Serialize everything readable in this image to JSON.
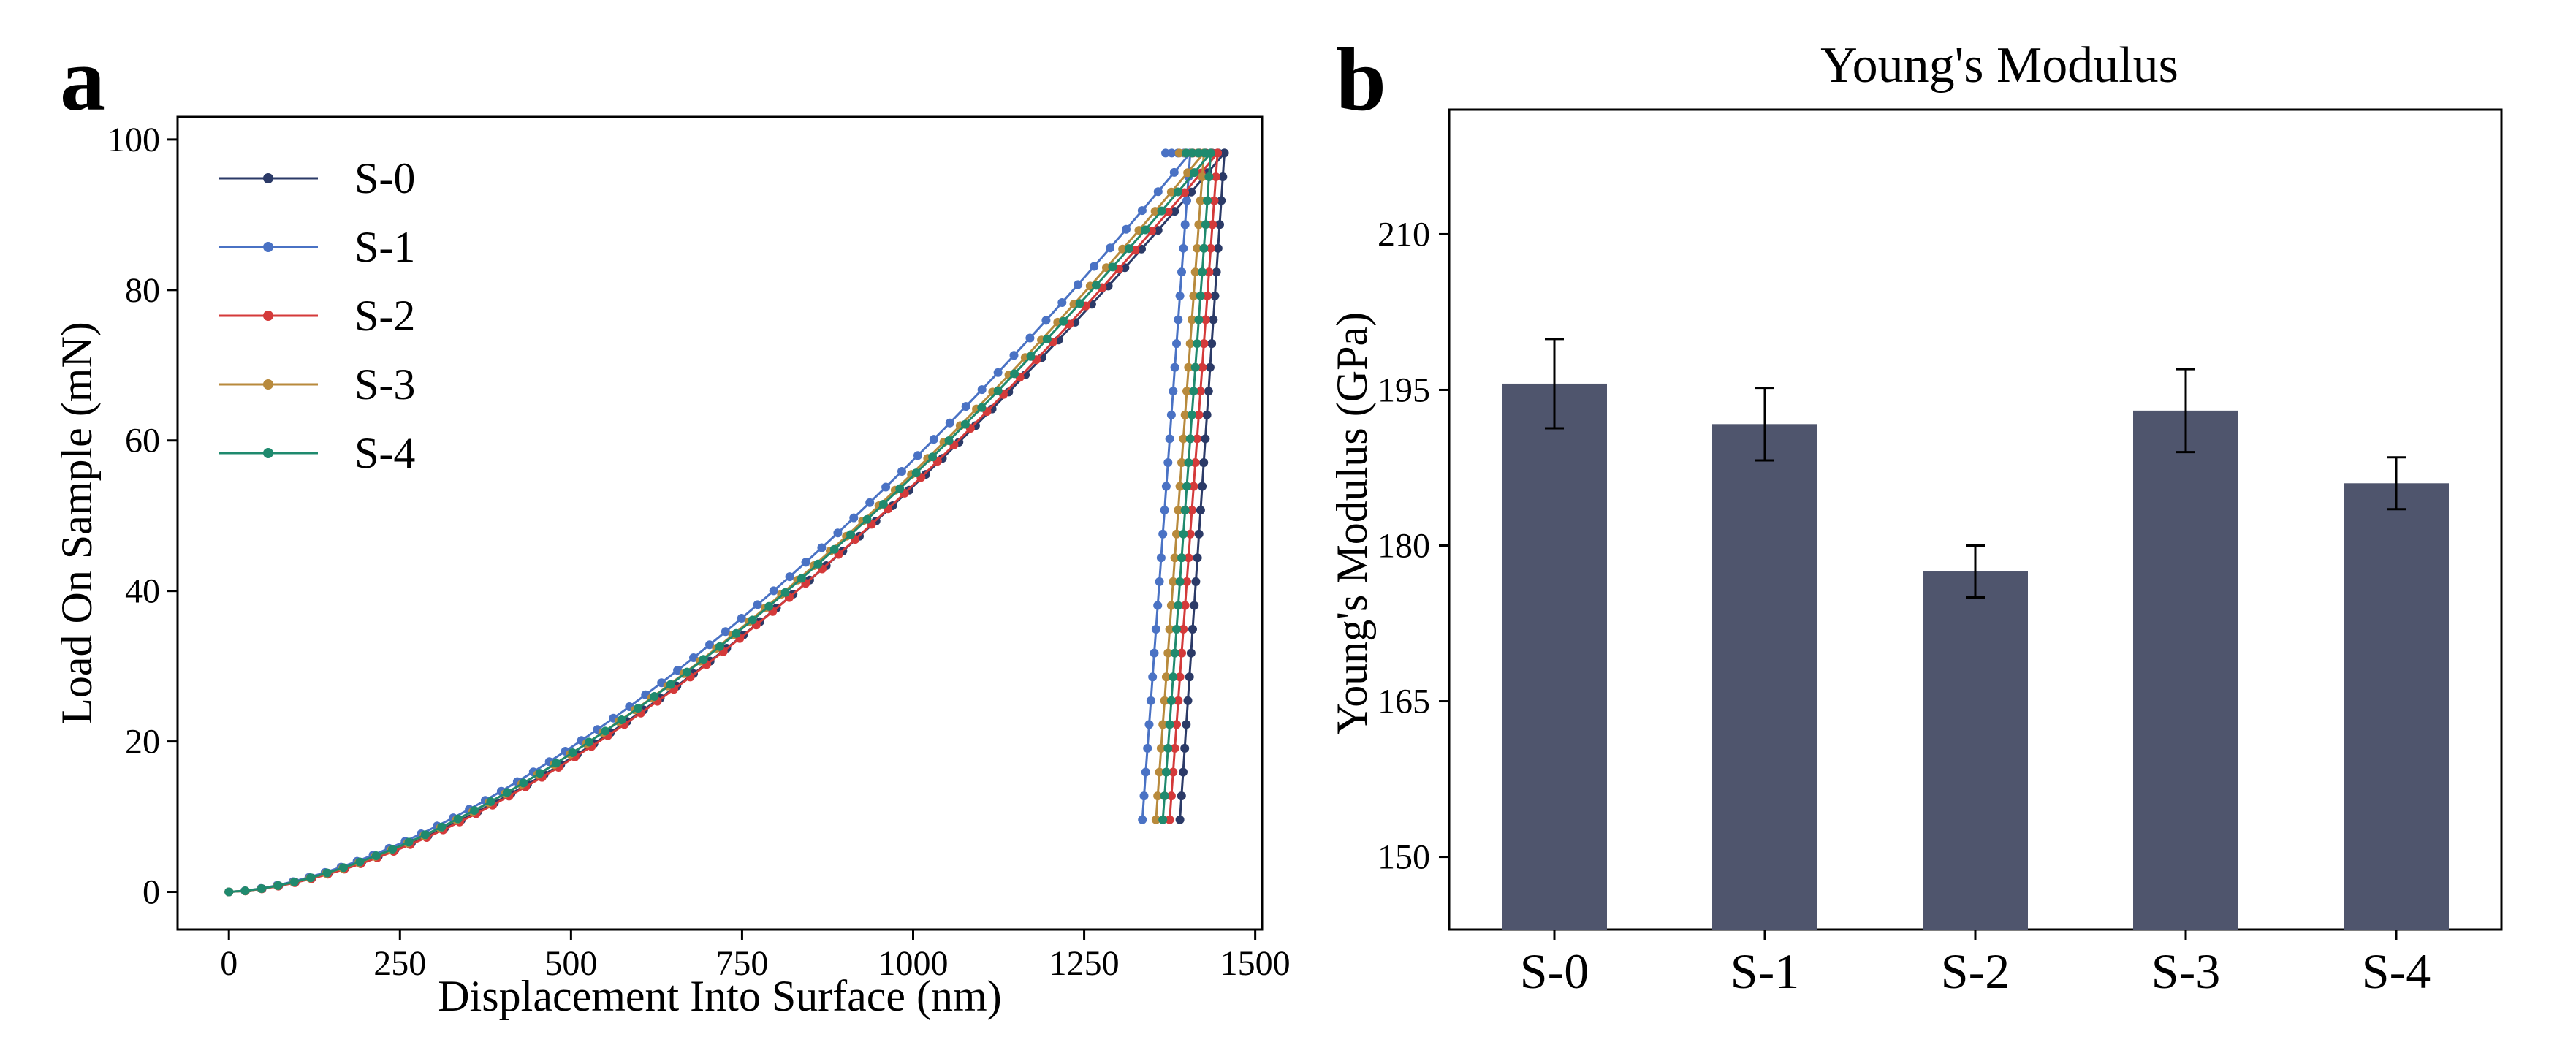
{
  "chart_data": [
    {
      "panel": "a",
      "type": "line",
      "title": "",
      "xlabel": "Displacement Into Surface (nm)",
      "ylabel": "Load On Sample (mN)",
      "xlim": [
        -75,
        1510
      ],
      "ylim": [
        -5,
        103
      ],
      "xticks": [
        0,
        250,
        500,
        750,
        1000,
        1250,
        1500
      ],
      "yticks": [
        0,
        20,
        40,
        60,
        80,
        100
      ],
      "grid": false,
      "legend_position": "top-left",
      "peak_load": 98.2,
      "unload_end_load": 9.6,
      "series": [
        {
          "name": "S-0",
          "color": "#2b3a67",
          "max_displacement": 1455,
          "final_displacement": 1390,
          "load_exponent": 1.6
        },
        {
          "name": "S-1",
          "color": "#4a72c4",
          "max_displacement": 1405,
          "final_displacement": 1335,
          "load_exponent": 1.58
        },
        {
          "name": "S-2",
          "color": "#d43a3a",
          "max_displacement": 1445,
          "final_displacement": 1375,
          "load_exponent": 1.62
        },
        {
          "name": "S-3",
          "color": "#b88a3c",
          "max_displacement": 1425,
          "final_displacement": 1355,
          "load_exponent": 1.6
        },
        {
          "name": "S-4",
          "color": "#1f8a6e",
          "max_displacement": 1435,
          "final_displacement": 1365,
          "load_exponent": 1.59
        }
      ]
    },
    {
      "panel": "b",
      "type": "bar",
      "title": "Young's Modulus",
      "xlabel": "",
      "ylabel": "Young's Modulus (GPa)",
      "ylim": [
        143,
        222
      ],
      "yticks": [
        150,
        165,
        180,
        195,
        210
      ],
      "grid": false,
      "bar_color": "#4f556d",
      "categories": [
        "S-0",
        "S-1",
        "S-2",
        "S-3",
        "S-4"
      ],
      "values": [
        195.6,
        191.7,
        177.5,
        193.0,
        186.0
      ],
      "errors": [
        4.3,
        3.5,
        2.5,
        4.0,
        2.5
      ]
    }
  ],
  "panel_labels": [
    "a",
    "b"
  ]
}
